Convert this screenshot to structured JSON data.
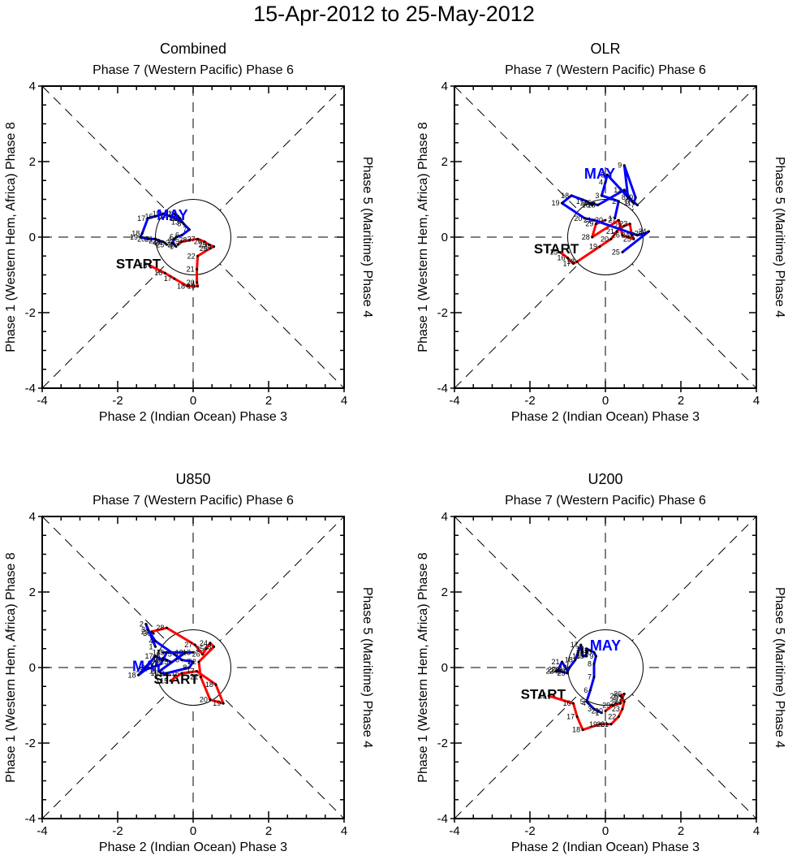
{
  "figure": {
    "title": "15-Apr-2012 to 25-May-2012",
    "colors": {
      "april": "#ff0000",
      "may": "#0000ff",
      "axes": "#000000"
    }
  },
  "chart_data": [
    {
      "type": "line",
      "title": "Combined",
      "top_label": "Phase 7 (Western Pacific) Phase 6",
      "xlabel": "Phase 2 (Indian Ocean) Phase 3",
      "ylabel_left": "Phase 1 (Western Hem, Africa) Phase 8",
      "ylabel_right": "Phase 5 (Maritime) Phase 4",
      "xlim": [
        -4,
        4
      ],
      "ylim": [
        -4,
        4
      ],
      "xticks": [
        "-4",
        "-2",
        "0",
        "2",
        "4"
      ],
      "yticks": [
        "-4",
        "-2",
        "0",
        "2",
        "4"
      ],
      "unit_circle_radius": 1,
      "start_label": "START",
      "start_pos": [
        -1.45,
        -0.7
      ],
      "month_label": "MAY",
      "month_pos": [
        -0.55,
        0.6
      ],
      "series": [
        {
          "name": "April",
          "color": "#ff0000",
          "days": [
            15,
            16,
            17,
            18,
            19,
            20,
            21,
            22,
            23,
            24,
            25,
            26,
            27,
            28,
            29,
            30
          ],
          "x": [
            -1.15,
            -0.75,
            -0.5,
            -0.15,
            0.12,
            0.1,
            0.1,
            0.12,
            0.45,
            0.55,
            0.42,
            0.3,
            0.12,
            -0.1,
            -0.3,
            -0.4
          ],
          "y": [
            -0.75,
            -0.95,
            -1.1,
            -1.3,
            -1.3,
            -1.2,
            -0.85,
            -0.5,
            -0.3,
            -0.25,
            -0.2,
            -0.12,
            -0.05,
            -0.08,
            -0.12,
            -0.2
          ]
        },
        {
          "name": "May",
          "color": "#0000ff",
          "days": [
            1,
            2,
            3,
            4,
            5,
            6,
            7,
            8,
            9,
            10,
            11,
            12,
            13,
            14,
            15,
            16,
            17,
            18,
            19,
            20,
            21,
            22,
            23,
            24,
            25
          ],
          "x": [
            -0.45,
            -0.5,
            -0.55,
            -0.5,
            -0.45,
            -0.3,
            -0.1,
            -0.25,
            -0.4,
            -0.45,
            -0.5,
            -0.35,
            -0.3,
            -0.6,
            -0.8,
            -1.0,
            -1.2,
            -1.35,
            -1.4,
            -1.2,
            -1.0,
            -0.9,
            -0.8,
            -0.75,
            -0.7
          ],
          "y": [
            -0.25,
            -0.2,
            -0.15,
            -0.05,
            0.0,
            0.05,
            0.2,
            0.35,
            0.55,
            0.6,
            0.62,
            0.5,
            0.4,
            0.55,
            0.62,
            0.55,
            0.5,
            0.1,
            0.0,
            -0.05,
            -0.05,
            -0.1,
            -0.12,
            -0.15,
            -0.2
          ]
        }
      ]
    },
    {
      "type": "line",
      "title": "OLR",
      "top_label": "Phase 7 (Western Pacific) Phase 6",
      "xlabel": "Phase 2 (Indian Ocean) Phase 3",
      "ylabel_left": "Phase 1 (Western Hem, Africa) Phase 8",
      "ylabel_right": "Phase 5 (Maritime) Phase 4",
      "xlim": [
        -4,
        4
      ],
      "ylim": [
        -4,
        4
      ],
      "xticks": [
        "-4",
        "-2",
        "0",
        "2",
        "4"
      ],
      "yticks": [
        "-4",
        "-2",
        "0",
        "2",
        "4"
      ],
      "unit_circle_radius": 1,
      "start_label": "START",
      "start_pos": [
        -1.3,
        -0.3
      ],
      "month_label": "MAY",
      "month_pos": [
        -0.15,
        1.7
      ],
      "series": [
        {
          "name": "April",
          "color": "#ff0000",
          "days": [
            15,
            16,
            17,
            18,
            19,
            20,
            21,
            22,
            23,
            24,
            25,
            26,
            27,
            28,
            29,
            30
          ],
          "x": [
            -1.2,
            -1.0,
            -0.85,
            -0.75,
            -0.15,
            0.15,
            0.3,
            0.5,
            0.65,
            0.7,
            0.75,
            0.45,
            0.35,
            -0.35,
            -0.25,
            0.0
          ],
          "y": [
            -0.4,
            -0.55,
            -0.7,
            -0.65,
            -0.25,
            -0.05,
            0.15,
            0.3,
            0.35,
            0.05,
            -0.05,
            0.05,
            0.45,
            0.0,
            0.35,
            0.45
          ]
        },
        {
          "name": "May",
          "color": "#0000ff",
          "days": [
            1,
            2,
            3,
            4,
            5,
            6,
            7,
            8,
            9,
            10,
            11,
            12,
            13,
            14,
            15,
            16,
            17,
            18,
            19,
            20,
            21,
            22,
            23,
            24,
            25
          ],
          "x": [
            0.25,
            0.35,
            -0.1,
            0.0,
            0.05,
            0.7,
            0.85,
            0.6,
            0.5,
            0.8,
            0.75,
            0.5,
            -0.2,
            -0.4,
            -0.3,
            -0.35,
            -0.5,
            -0.9,
            -1.15,
            -0.55,
            -0.3,
            0.85,
            1.05,
            1.15,
            0.45
          ],
          "y": [
            0.5,
            0.95,
            1.1,
            1.45,
            1.65,
            0.95,
            0.85,
            1.05,
            1.9,
            1.05,
            0.9,
            1.25,
            0.85,
            0.9,
            0.9,
            0.85,
            0.95,
            1.1,
            0.9,
            0.5,
            0.45,
            0.05,
            0.1,
            0.15,
            -0.4
          ]
        }
      ]
    },
    {
      "type": "line",
      "title": "U850",
      "top_label": "Phase 7 (Western Pacific) Phase 6",
      "xlabel": "Phase 2 (Indian Ocean) Phase 3",
      "ylabel_left": "Phase 1 (Western Hem, Africa) Phase 8",
      "ylabel_right": "Phase 5 (Maritime) Phase 4",
      "xlim": [
        -4,
        4
      ],
      "ylim": [
        -4,
        4
      ],
      "xticks": [
        "-4",
        "-2",
        "0",
        "2",
        "4"
      ],
      "yticks": [
        "-4",
        "-2",
        "0",
        "2",
        "4"
      ],
      "unit_circle_radius": 1,
      "start_label": "START",
      "start_pos": [
        -0.45,
        -0.3
      ],
      "month_label": "MAY",
      "month_pos": [
        -1.2,
        0.05
      ],
      "series": [
        {
          "name": "April",
          "color": "#ff0000",
          "days": [
            15,
            16,
            17,
            18,
            19,
            20,
            21,
            22,
            23,
            24,
            25,
            26,
            27,
            28,
            29,
            30
          ],
          "x": [
            -0.6,
            -0.3,
            0.1,
            0.6,
            0.8,
            0.45,
            0.2,
            0.15,
            0.55,
            0.45,
            0.35,
            0.25,
            0.05,
            -0.7,
            -1.1,
            -1.05
          ],
          "y": [
            -0.35,
            -0.15,
            -0.1,
            -0.45,
            -0.95,
            -0.85,
            -0.25,
            0.15,
            0.55,
            0.65,
            0.5,
            0.35,
            0.6,
            1.05,
            0.95,
            0.9
          ]
        },
        {
          "name": "May",
          "color": "#0000ff",
          "days": [
            1,
            2,
            3,
            4,
            5,
            6,
            7,
            8,
            9,
            10,
            11,
            12,
            13,
            14,
            15,
            16,
            17,
            18,
            19,
            20,
            21,
            22,
            23,
            24,
            25
          ],
          "x": [
            -1.0,
            -1.25,
            -1.2,
            -1.0,
            -0.5,
            -0.3,
            0.0,
            -0.1,
            -0.7,
            -0.85,
            -0.9,
            -0.2,
            0.0,
            -0.8,
            -0.7,
            -0.8,
            -1.0,
            -1.45,
            -1.25,
            -1.1,
            -0.95,
            -0.85,
            -0.8,
            -0.7,
            -0.6
          ],
          "y": [
            0.55,
            1.15,
            1.0,
            0.7,
            0.35,
            0.2,
            0.15,
            0.0,
            -0.15,
            -0.15,
            -0.1,
            0.4,
            0.4,
            0.4,
            0.4,
            0.2,
            0.3,
            -0.2,
            -0.05,
            0.0,
            0.05,
            0.1,
            0.25,
            0.2,
            0.15
          ]
        }
      ]
    },
    {
      "type": "line",
      "title": "U200",
      "top_label": "Phase 7 (Western Pacific) Phase 6",
      "xlabel": "Phase 2 (Indian Ocean) Phase 3",
      "ylabel_left": "Phase 1 (Western Hem, Africa) Phase 8",
      "ylabel_right": "Phase 5 (Maritime) Phase 4",
      "xlim": [
        -4,
        4
      ],
      "ylim": [
        -4,
        4
      ],
      "xticks": [
        "-4",
        "-2",
        "0",
        "2",
        "4"
      ],
      "yticks": [
        "-4",
        "-2",
        "0",
        "2",
        "4"
      ],
      "unit_circle_radius": 1,
      "start_label": "START",
      "start_pos": [
        -1.65,
        -0.7
      ],
      "month_label": "MAY",
      "month_pos": [
        0.0,
        0.6
      ],
      "series": [
        {
          "name": "April",
          "color": "#ff0000",
          "days": [
            15,
            16,
            17,
            18,
            19,
            20,
            21,
            22,
            23,
            24,
            25,
            26,
            27,
            28,
            29,
            30
          ],
          "x": [
            -1.5,
            -0.85,
            -0.75,
            -0.6,
            -0.15,
            0.05,
            0.15,
            0.35,
            0.45,
            0.5,
            0.4,
            0.5,
            0.45,
            0.4,
            0.2,
            0.0
          ],
          "y": [
            -0.75,
            -0.95,
            -1.3,
            -1.65,
            -1.5,
            -1.5,
            -1.5,
            -1.3,
            -1.1,
            -0.9,
            -0.75,
            -0.7,
            -0.8,
            -0.95,
            -1.0,
            -1.15
          ]
        },
        {
          "name": "May",
          "color": "#0000ff",
          "days": [
            1,
            2,
            3,
            4,
            5,
            6,
            7,
            8,
            9,
            10,
            11,
            12,
            13,
            14,
            15,
            16,
            17,
            18,
            19,
            20,
            21,
            22,
            23,
            24,
            25
          ],
          "x": [
            -0.1,
            -0.2,
            -0.3,
            -0.45,
            -0.5,
            -0.4,
            -0.3,
            -0.3,
            -0.25,
            -0.3,
            -0.4,
            -0.5,
            -0.5,
            -0.5,
            -0.5,
            -0.6,
            -0.65,
            -0.8,
            -0.95,
            -1.0,
            -1.15,
            -1.25,
            -1.3,
            -1.2,
            -1.0
          ],
          "y": [
            -1.2,
            -1.15,
            -1.1,
            -0.95,
            -0.9,
            -0.6,
            -0.25,
            0.1,
            0.3,
            0.4,
            0.45,
            0.5,
            0.45,
            0.4,
            0.3,
            0.3,
            0.6,
            0.2,
            0.0,
            -0.1,
            0.15,
            -0.05,
            -0.1,
            -0.1,
            -0.15
          ]
        }
      ]
    }
  ]
}
